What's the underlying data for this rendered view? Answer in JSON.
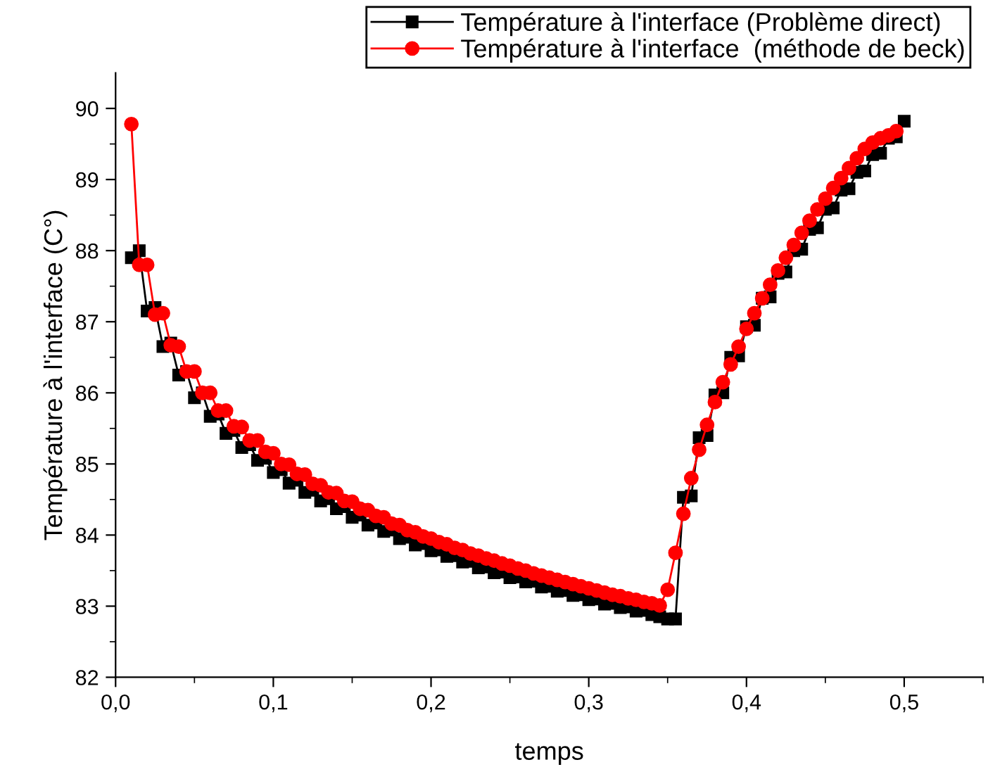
{
  "chart_data": {
    "type": "line",
    "xlabel": "temps",
    "ylabel": "Température à l'interface (C°)",
    "xlim": [
      0,
      0.55
    ],
    "ylim": [
      82,
      90.5
    ],
    "xticks": [
      {
        "value": 0,
        "label": "0,0"
      },
      {
        "value": 0.1,
        "label": "0,1"
      },
      {
        "value": 0.2,
        "label": "0,2"
      },
      {
        "value": 0.3,
        "label": "0,3"
      },
      {
        "value": 0.4,
        "label": "0,4"
      },
      {
        "value": 0.5,
        "label": "0,5"
      }
    ],
    "yticks": [
      82,
      83,
      84,
      85,
      86,
      87,
      88,
      89,
      90
    ],
    "grid": false,
    "legend": "top right",
    "series": [
      {
        "name": "Température à l'interface (Problème direct)",
        "color": "#000000",
        "marker": "square",
        "x": [
          0.01,
          0.015,
          0.02,
          0.025,
          0.03,
          0.035,
          0.04,
          0.045,
          0.05,
          0.055,
          0.06,
          0.065,
          0.07,
          0.075,
          0.08,
          0.085,
          0.09,
          0.095,
          0.1,
          0.105,
          0.11,
          0.115,
          0.12,
          0.125,
          0.13,
          0.135,
          0.14,
          0.145,
          0.15,
          0.155,
          0.16,
          0.165,
          0.17,
          0.175,
          0.18,
          0.185,
          0.19,
          0.195,
          0.2,
          0.205,
          0.21,
          0.215,
          0.22,
          0.225,
          0.23,
          0.235,
          0.24,
          0.245,
          0.25,
          0.255,
          0.26,
          0.265,
          0.27,
          0.275,
          0.28,
          0.285,
          0.29,
          0.295,
          0.3,
          0.305,
          0.31,
          0.315,
          0.32,
          0.325,
          0.33,
          0.335,
          0.34,
          0.345,
          0.35,
          0.355,
          0.36,
          0.365,
          0.37,
          0.375,
          0.38,
          0.385,
          0.39,
          0.395,
          0.4,
          0.405,
          0.41,
          0.415,
          0.42,
          0.425,
          0.43,
          0.435,
          0.44,
          0.445,
          0.45,
          0.455,
          0.46,
          0.465,
          0.47,
          0.475,
          0.48,
          0.485,
          0.49,
          0.495,
          0.5
        ],
        "values": [
          87.9,
          88.0,
          87.15,
          87.2,
          86.65,
          86.7,
          86.25,
          86.3,
          85.93,
          86.0,
          85.67,
          85.7,
          85.43,
          85.47,
          85.23,
          85.27,
          85.05,
          85.08,
          84.88,
          84.92,
          84.73,
          84.77,
          84.6,
          84.63,
          84.48,
          84.51,
          84.37,
          84.4,
          84.25,
          84.28,
          84.14,
          84.17,
          84.05,
          84.07,
          83.95,
          83.97,
          83.86,
          83.88,
          83.78,
          83.79,
          83.7,
          83.71,
          83.62,
          83.63,
          83.54,
          83.55,
          83.47,
          83.48,
          83.4,
          83.41,
          83.34,
          83.35,
          83.27,
          83.28,
          83.21,
          83.22,
          83.15,
          83.16,
          83.09,
          83.1,
          83.03,
          83.04,
          82.98,
          82.99,
          82.93,
          82.94,
          82.88,
          82.85,
          82.82,
          82.82,
          84.53,
          84.55,
          85.37,
          85.4,
          85.97,
          86.0,
          86.5,
          86.52,
          86.93,
          86.95,
          87.33,
          87.35,
          87.68,
          87.7,
          88.0,
          88.02,
          88.3,
          88.32,
          88.58,
          88.6,
          88.85,
          88.87,
          89.1,
          89.12,
          89.35,
          89.37,
          89.58,
          89.6,
          89.82
        ]
      },
      {
        "name": "Température à l'interface  (méthode de beck)",
        "color": "#ff0000",
        "marker": "circle",
        "x": [
          0.01,
          0.015,
          0.02,
          0.025,
          0.03,
          0.035,
          0.04,
          0.045,
          0.05,
          0.055,
          0.06,
          0.065,
          0.07,
          0.075,
          0.08,
          0.085,
          0.09,
          0.095,
          0.1,
          0.105,
          0.11,
          0.115,
          0.12,
          0.125,
          0.13,
          0.135,
          0.14,
          0.145,
          0.15,
          0.155,
          0.16,
          0.165,
          0.17,
          0.175,
          0.18,
          0.185,
          0.19,
          0.195,
          0.2,
          0.205,
          0.21,
          0.215,
          0.22,
          0.225,
          0.23,
          0.235,
          0.24,
          0.245,
          0.25,
          0.255,
          0.26,
          0.265,
          0.27,
          0.275,
          0.28,
          0.285,
          0.29,
          0.295,
          0.3,
          0.305,
          0.31,
          0.315,
          0.32,
          0.325,
          0.33,
          0.335,
          0.34,
          0.345,
          0.35,
          0.355,
          0.36,
          0.365,
          0.37,
          0.375,
          0.38,
          0.385,
          0.39,
          0.395,
          0.4,
          0.405,
          0.41,
          0.415,
          0.42,
          0.425,
          0.43,
          0.435,
          0.44,
          0.445,
          0.45,
          0.455,
          0.46,
          0.465,
          0.47,
          0.475,
          0.48,
          0.485,
          0.49,
          0.495
        ],
        "values": [
          89.78,
          87.8,
          87.8,
          87.1,
          87.12,
          86.67,
          86.65,
          86.3,
          86.3,
          86.0,
          86.0,
          85.75,
          85.75,
          85.53,
          85.52,
          85.33,
          85.33,
          85.17,
          85.15,
          85.0,
          84.99,
          84.86,
          84.85,
          84.72,
          84.7,
          84.6,
          84.59,
          84.48,
          84.47,
          84.37,
          84.35,
          84.27,
          84.25,
          84.16,
          84.14,
          84.07,
          84.04,
          83.98,
          83.95,
          83.9,
          83.87,
          83.82,
          83.79,
          83.74,
          83.71,
          83.67,
          83.64,
          83.6,
          83.57,
          83.53,
          83.5,
          83.46,
          83.43,
          83.4,
          83.37,
          83.34,
          83.31,
          83.28,
          83.25,
          83.22,
          83.19,
          83.16,
          83.14,
          83.11,
          83.09,
          83.06,
          83.04,
          83.01,
          83.23,
          83.75,
          84.3,
          84.8,
          85.2,
          85.55,
          85.87,
          86.15,
          86.4,
          86.65,
          86.9,
          87.12,
          87.33,
          87.52,
          87.72,
          87.9,
          88.08,
          88.25,
          88.42,
          88.58,
          88.73,
          88.88,
          89.02,
          89.16,
          89.3,
          89.43,
          89.52,
          89.58,
          89.62,
          89.68
        ]
      }
    ]
  }
}
